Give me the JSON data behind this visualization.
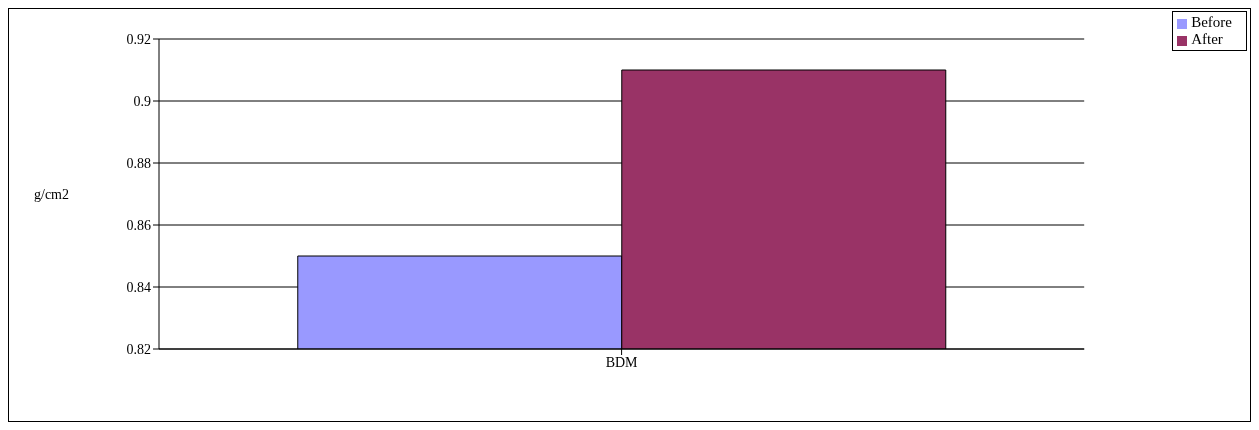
{
  "chart_data": {
    "type": "bar",
    "ylabel": "g/cm2",
    "categories": [
      "BDM"
    ],
    "series": [
      {
        "name": "Before",
        "color": "#9999ff",
        "values": [
          0.85
        ]
      },
      {
        "name": "After",
        "color": "#993366",
        "values": [
          0.91
        ]
      }
    ],
    "ylim": [
      0.82,
      0.92
    ],
    "yticks": [
      0.82,
      0.84,
      0.86,
      0.88,
      0.9,
      0.92
    ],
    "grid": "y",
    "legend": "top right"
  }
}
